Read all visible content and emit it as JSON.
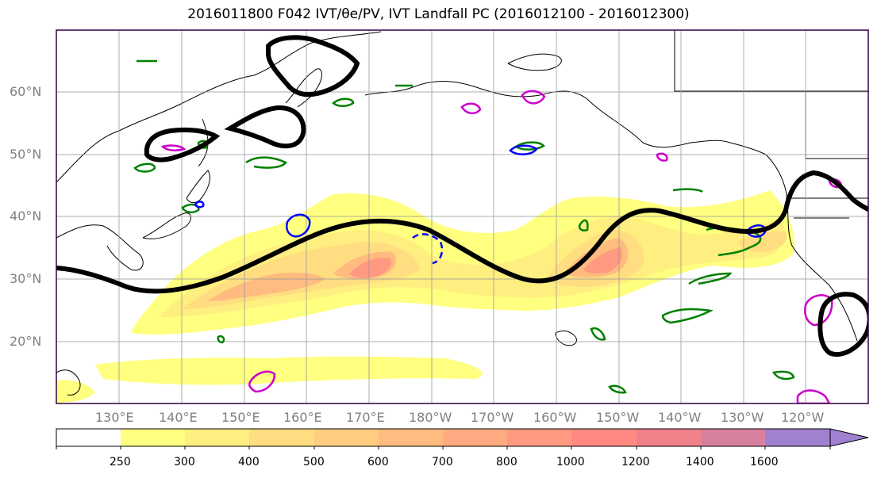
{
  "title": {
    "text": "2016011800 F042 IVT/θe/PV, IVT Landfall PC (2016012100 - 2016012300)"
  },
  "map": {
    "lat_ticks": [
      "60°N",
      "50°N",
      "40°N",
      "30°N",
      "20°N"
    ],
    "lon_ticks": [
      "130°E",
      "140°E",
      "150°E",
      "160°E",
      "170°E",
      "180°W",
      "170°W",
      "160°W",
      "150°W",
      "140°W",
      "130°W",
      "120°W"
    ],
    "projection": "PlateCarree",
    "extent": {
      "lon_min": 120,
      "lon_max": 250,
      "lat_min": 10,
      "lat_max": 70
    },
    "grid": true,
    "colors": {
      "ivt_fill": "#FFE066",
      "theta_e": "#008000",
      "pv_positive": "#0000FF",
      "pv_negative": "#CC00CC",
      "landfall_pc": "#000000"
    }
  },
  "colorbar": {
    "levels": [
      "250",
      "300",
      "400",
      "500",
      "600",
      "700",
      "800",
      "1000",
      "1200",
      "1400",
      "1600"
    ],
    "colors": [
      "#ffff80",
      "#ffee80",
      "#ffdd80",
      "#ffcc80",
      "#ffbb80",
      "#ffaa80",
      "#ff9980",
      "#ff8880",
      "#f0808a",
      "#d880a0",
      "#c080c0",
      "#a080d0"
    ],
    "extend": "max"
  }
}
